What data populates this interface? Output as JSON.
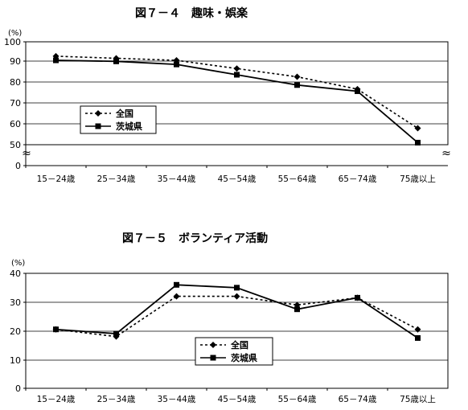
{
  "chart_data": [
    {
      "type": "line",
      "title": "図７－４　趣味・娯楽",
      "unit_label": "(%)",
      "categories": [
        "15－24歳",
        "25－34歳",
        "35－44歳",
        "45－54歳",
        "55－64歳",
        "65－74歳",
        "75歳以上"
      ],
      "series": [
        {
          "name": "全国",
          "style": "dotted",
          "marker": "diamond",
          "values": [
            93,
            92,
            91,
            87,
            83,
            77,
            58
          ]
        },
        {
          "name": "茨城県",
          "style": "solid",
          "marker": "square",
          "values": [
            91,
            90.5,
            89,
            84,
            79,
            76,
            51
          ]
        }
      ],
      "yticks": [
        "0",
        "50",
        "60",
        "70",
        "80",
        "90",
        "100"
      ],
      "ylim": [
        50,
        100
      ],
      "axis_break": true,
      "axis_break_symbol": "≈",
      "legend_position": "left-middle",
      "grid": true
    },
    {
      "type": "line",
      "title": "図７－５　ボランティア活動",
      "unit_label": "(%)",
      "categories": [
        "15－24歳",
        "25－34歳",
        "35－44歳",
        "45－54歳",
        "55－64歳",
        "65－74歳",
        "75歳以上"
      ],
      "series": [
        {
          "name": "全国",
          "style": "dotted",
          "marker": "diamond",
          "values": [
            20.5,
            18,
            32,
            32,
            29,
            31.5,
            20.5
          ]
        },
        {
          "name": "茨城県",
          "style": "solid",
          "marker": "square",
          "values": [
            20.5,
            19,
            36,
            35,
            27.5,
            31.5,
            17.5
          ]
        }
      ],
      "yticks": [
        "0",
        "10",
        "20",
        "30",
        "40"
      ],
      "ylim": [
        0,
        40
      ],
      "legend_position": "bottom-center",
      "grid": true
    }
  ]
}
